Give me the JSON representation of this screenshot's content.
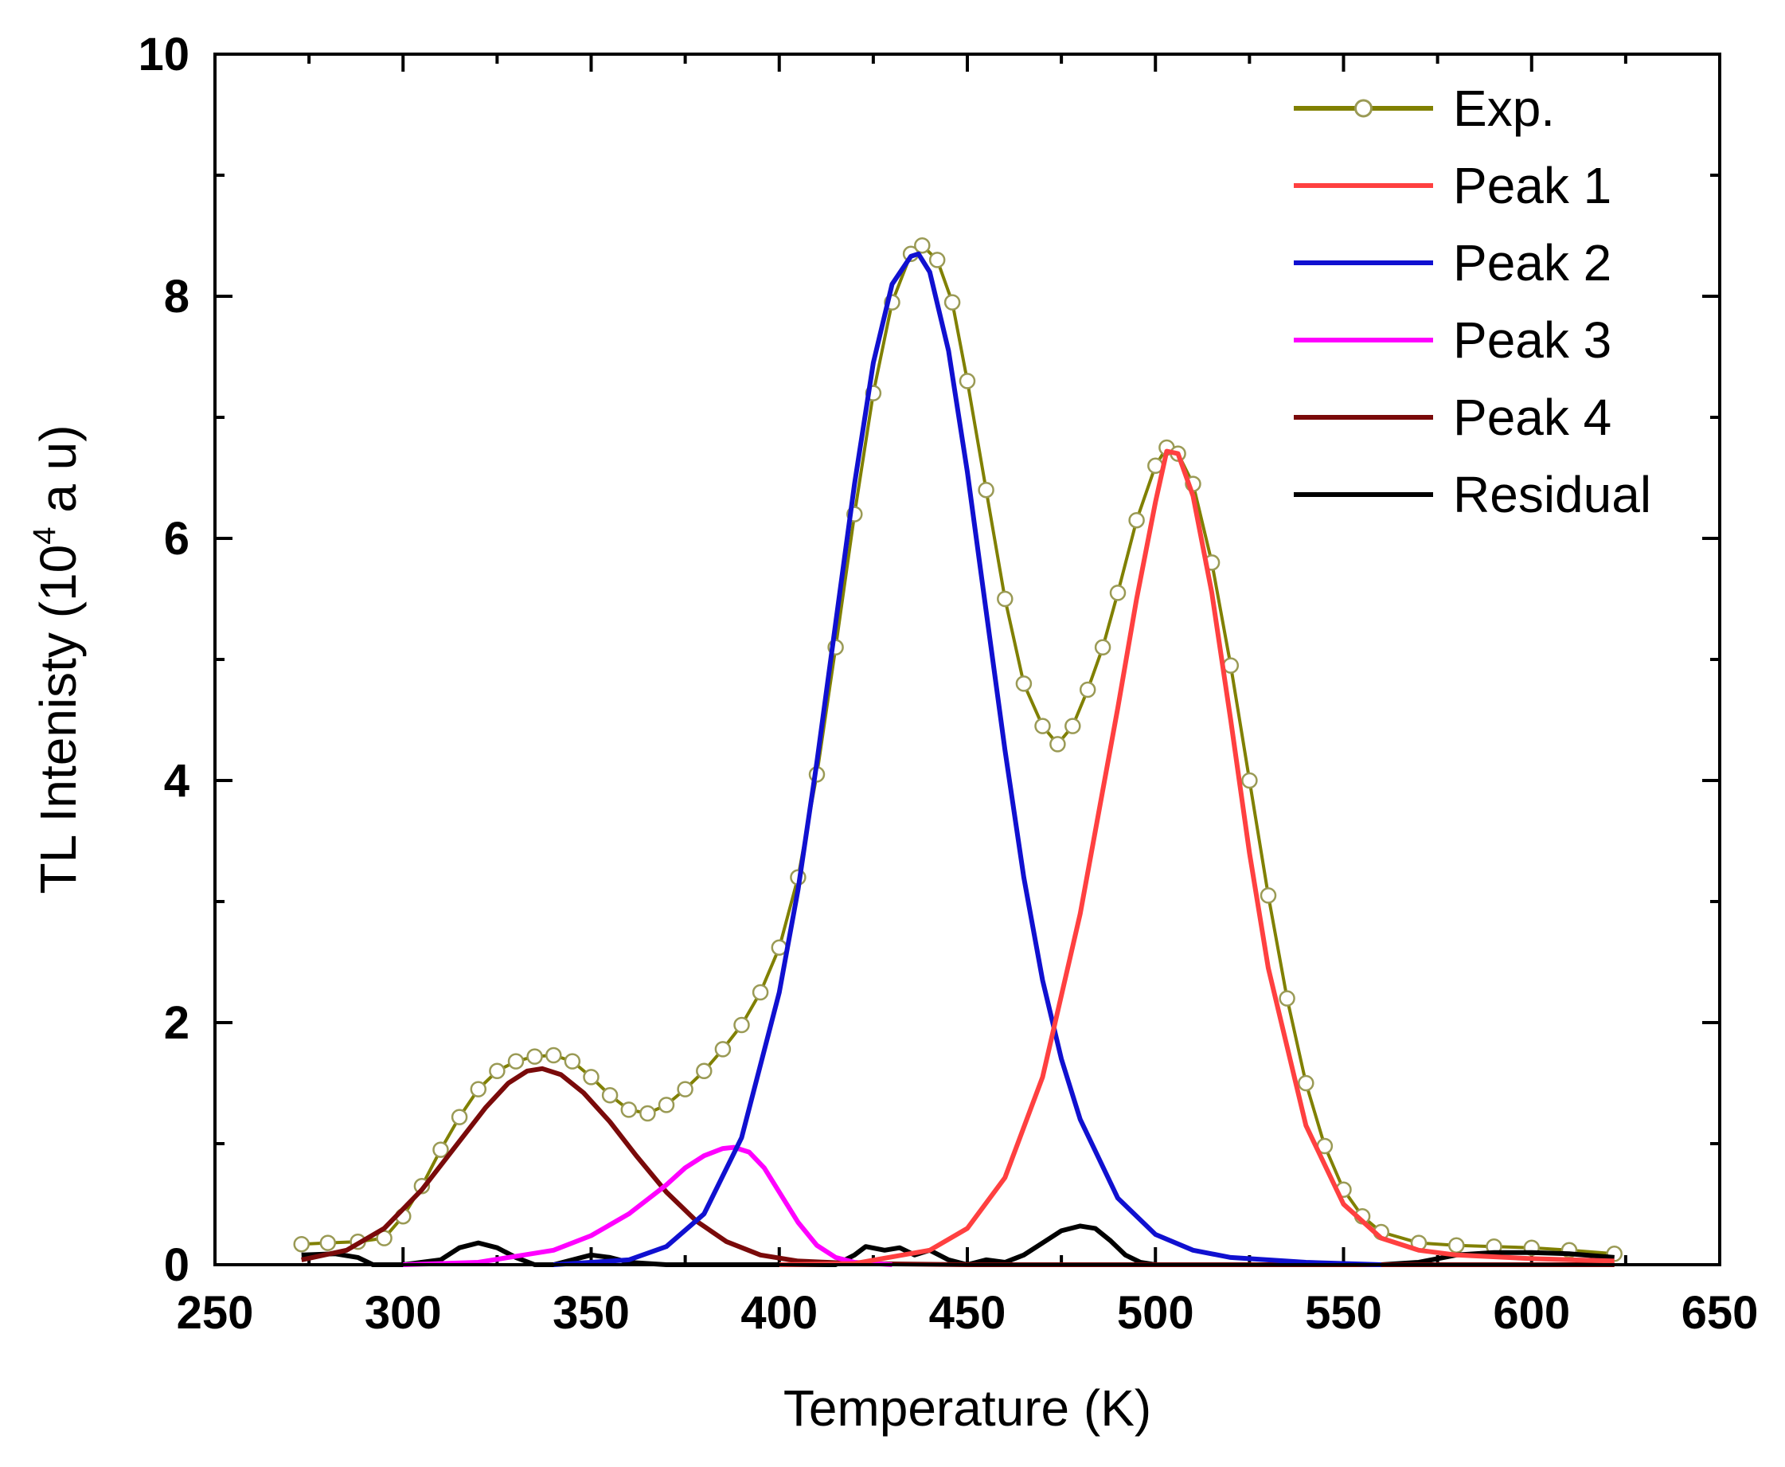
{
  "chart_data": {
    "type": "line",
    "title": "",
    "xlabel": "Temperature (K)",
    "ylabel": {
      "prefix": "TL Intenisty (10",
      "exponent": "4",
      "suffix": " a u)"
    },
    "xlim": [
      250,
      650
    ],
    "ylim": [
      0,
      10
    ],
    "xticks": [
      250,
      300,
      350,
      400,
      450,
      500,
      550,
      600,
      650
    ],
    "yticks": [
      0,
      2,
      4,
      6,
      8,
      10
    ],
    "x_tick_labels": [
      "250",
      "300",
      "350",
      "400",
      "450",
      "500",
      "550",
      "600",
      "650"
    ],
    "y_tick_labels": [
      "0",
      "2",
      "4",
      "6",
      "8",
      "10"
    ],
    "legend_position": "top-right",
    "series": [
      {
        "name": "Exp.",
        "color": "#808000",
        "marker": "open-circle",
        "marker_edge": "#9a9a55",
        "x": [
          273,
          280,
          288,
          295,
          300,
          305,
          310,
          315,
          320,
          325,
          330,
          335,
          340,
          345,
          350,
          355,
          360,
          365,
          370,
          375,
          380,
          385,
          390,
          395,
          400,
          405,
          410,
          415,
          420,
          425,
          430,
          435,
          438,
          442,
          446,
          450,
          455,
          460,
          465,
          470,
          474,
          478,
          482,
          486,
          490,
          495,
          500,
          503,
          506,
          510,
          515,
          520,
          525,
          530,
          535,
          540,
          545,
          550,
          555,
          560,
          570,
          580,
          590,
          600,
          610,
          622
        ],
        "y": [
          0.17,
          0.18,
          0.19,
          0.22,
          0.4,
          0.65,
          0.95,
          1.22,
          1.45,
          1.6,
          1.68,
          1.72,
          1.73,
          1.68,
          1.55,
          1.4,
          1.28,
          1.25,
          1.32,
          1.45,
          1.6,
          1.78,
          1.98,
          2.25,
          2.62,
          3.2,
          4.05,
          5.1,
          6.2,
          7.2,
          7.95,
          8.35,
          8.42,
          8.3,
          7.95,
          7.3,
          6.4,
          5.5,
          4.8,
          4.45,
          4.3,
          4.45,
          4.75,
          5.1,
          5.55,
          6.15,
          6.6,
          6.75,
          6.7,
          6.45,
          5.8,
          4.95,
          4.0,
          3.05,
          2.2,
          1.5,
          0.98,
          0.62,
          0.4,
          0.27,
          0.18,
          0.16,
          0.15,
          0.14,
          0.12,
          0.09
        ]
      },
      {
        "name": "Peak 1",
        "color": "#ff4040",
        "x": [
          400,
          420,
          440,
          450,
          460,
          470,
          480,
          490,
          495,
          500,
          503,
          506,
          510,
          515,
          520,
          525,
          530,
          540,
          550,
          560,
          570,
          580,
          600,
          622
        ],
        "y": [
          0.0,
          0.01,
          0.12,
          0.3,
          0.72,
          1.55,
          2.9,
          4.6,
          5.5,
          6.3,
          6.72,
          6.7,
          6.35,
          5.55,
          4.5,
          3.4,
          2.45,
          1.15,
          0.5,
          0.22,
          0.12,
          0.08,
          0.05,
          0.03
        ]
      },
      {
        "name": "Peak 2",
        "color": "#1010d0",
        "x": [
          340,
          360,
          370,
          380,
          390,
          400,
          405,
          410,
          415,
          420,
          425,
          430,
          435,
          437,
          440,
          445,
          450,
          455,
          460,
          465,
          470,
          475,
          480,
          490,
          500,
          510,
          520,
          540,
          560
        ],
        "y": [
          0.0,
          0.04,
          0.15,
          0.42,
          1.05,
          2.25,
          3.1,
          4.15,
          5.3,
          6.45,
          7.45,
          8.1,
          8.33,
          8.35,
          8.2,
          7.55,
          6.55,
          5.4,
          4.25,
          3.2,
          2.35,
          1.7,
          1.2,
          0.55,
          0.25,
          0.12,
          0.06,
          0.02,
          0.0
        ]
      },
      {
        "name": "Peak 3",
        "color": "#ff00ff",
        "x": [
          300,
          320,
          340,
          350,
          360,
          370,
          375,
          380,
          385,
          388,
          392,
          396,
          400,
          405,
          410,
          415,
          420,
          430
        ],
        "y": [
          0.0,
          0.02,
          0.12,
          0.24,
          0.42,
          0.66,
          0.8,
          0.9,
          0.96,
          0.97,
          0.93,
          0.8,
          0.6,
          0.35,
          0.16,
          0.06,
          0.02,
          0.0
        ]
      },
      {
        "name": "Peak 4",
        "color": "#7a0a0a",
        "x": [
          273,
          285,
          295,
          305,
          315,
          322,
          328,
          333,
          337,
          342,
          348,
          355,
          362,
          370,
          378,
          386,
          395,
          405,
          420,
          450,
          500,
          600,
          622
        ],
        "y": [
          0.04,
          0.12,
          0.3,
          0.62,
          1.02,
          1.3,
          1.5,
          1.6,
          1.62,
          1.57,
          1.42,
          1.18,
          0.9,
          0.6,
          0.36,
          0.19,
          0.08,
          0.03,
          0.01,
          0.0,
          0.0,
          0.0,
          0.0
        ]
      },
      {
        "name": "Residual",
        "color": "#000000",
        "x": [
          273,
          282,
          288,
          292,
          300,
          310,
          315,
          320,
          325,
          330,
          335,
          340,
          345,
          350,
          355,
          360,
          370,
          380,
          400,
          415,
          420,
          423,
          428,
          432,
          436,
          440,
          445,
          450,
          455,
          460,
          465,
          470,
          475,
          480,
          484,
          488,
          492,
          496,
          500,
          510,
          520,
          540,
          560,
          570,
          580,
          590,
          600,
          610,
          622
        ],
        "y": [
          0.08,
          0.09,
          0.06,
          0.0,
          0.0,
          0.04,
          0.14,
          0.18,
          0.14,
          0.06,
          0.0,
          0.0,
          0.04,
          0.08,
          0.06,
          0.02,
          0.0,
          0.0,
          0.0,
          0.0,
          0.08,
          0.15,
          0.12,
          0.14,
          0.08,
          0.12,
          0.04,
          0.0,
          0.04,
          0.02,
          0.08,
          0.18,
          0.28,
          0.32,
          0.3,
          0.2,
          0.08,
          0.02,
          0.0,
          0.0,
          0.0,
          0.0,
          0.0,
          0.02,
          0.08,
          0.1,
          0.1,
          0.09,
          0.06
        ]
      }
    ]
  }
}
